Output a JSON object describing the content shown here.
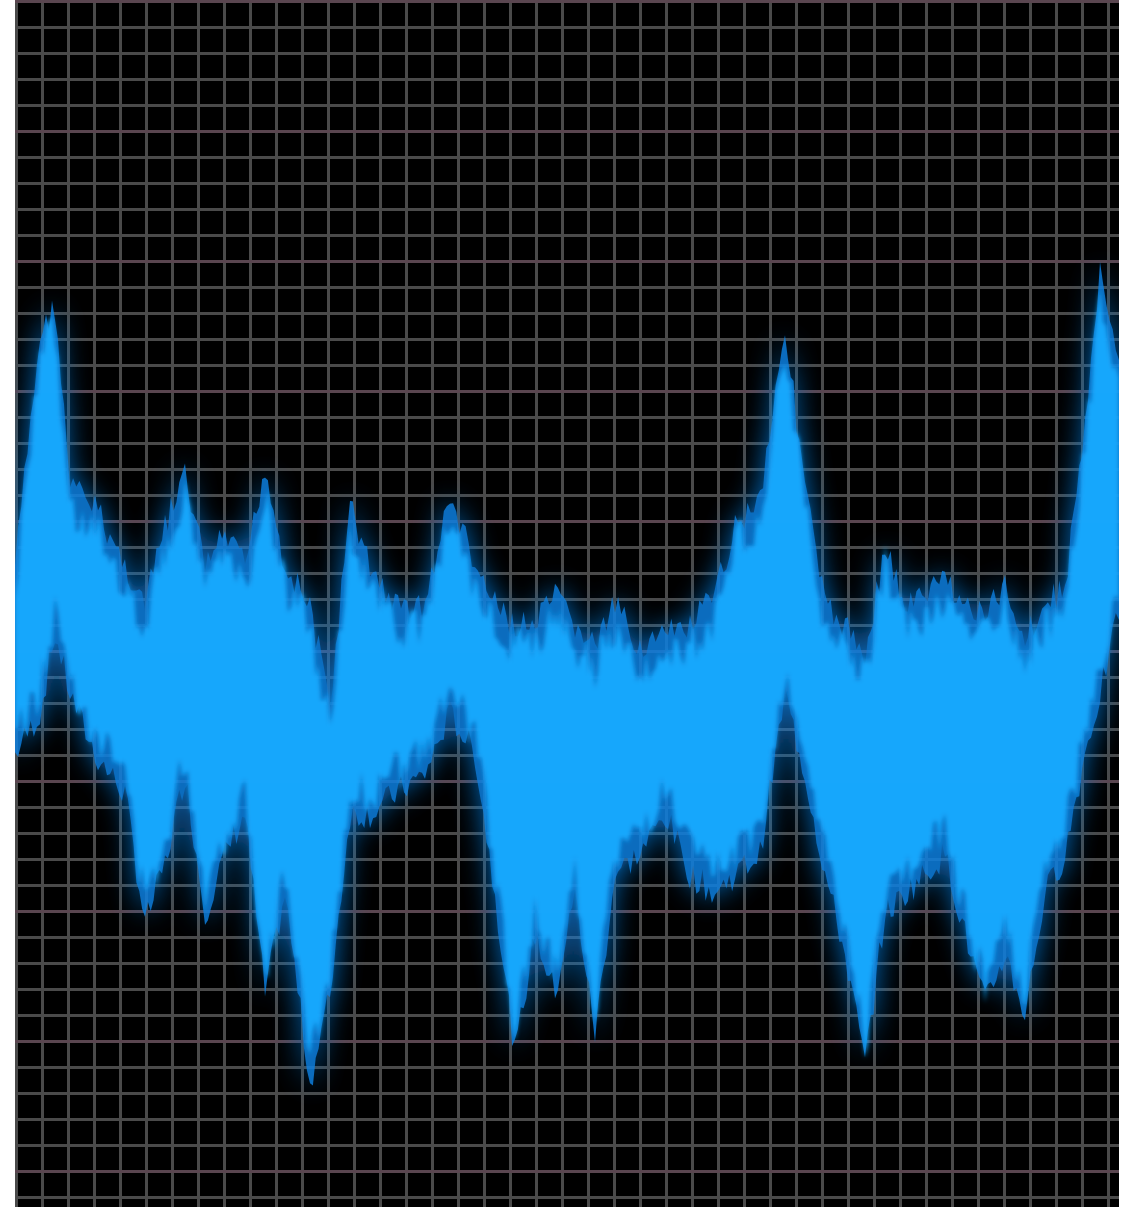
{
  "image": {
    "subject": "audio-waveform",
    "colors": {
      "background": "#000000",
      "grid": "#4a4a4a",
      "grid_accent": "#5a4650",
      "wave_core": "#14aaff",
      "wave_glow": "#0a7fe0",
      "page_margin": "#ffffff"
    },
    "grid": {
      "visible": true
    }
  }
}
